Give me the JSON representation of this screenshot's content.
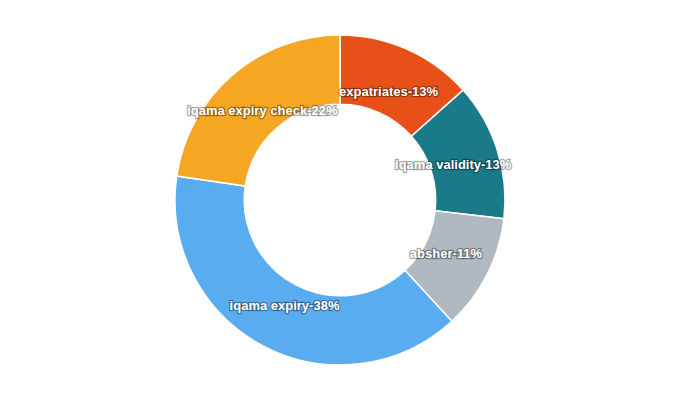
{
  "chart_data": {
    "type": "pie",
    "values": [
      13,
      13,
      11,
      38,
      22
    ],
    "value_labels": [
      "expatriates-13%",
      "iqama validity-13%",
      "absher-11%",
      "iqama expiry-38%",
      "iqama expiry check-22%"
    ],
    "colors": [
      "#e8501a",
      "#1a7a8a",
      "#b0b8c0",
      "#5aacf0",
      "#f5a623"
    ],
    "data_labels": true
  }
}
